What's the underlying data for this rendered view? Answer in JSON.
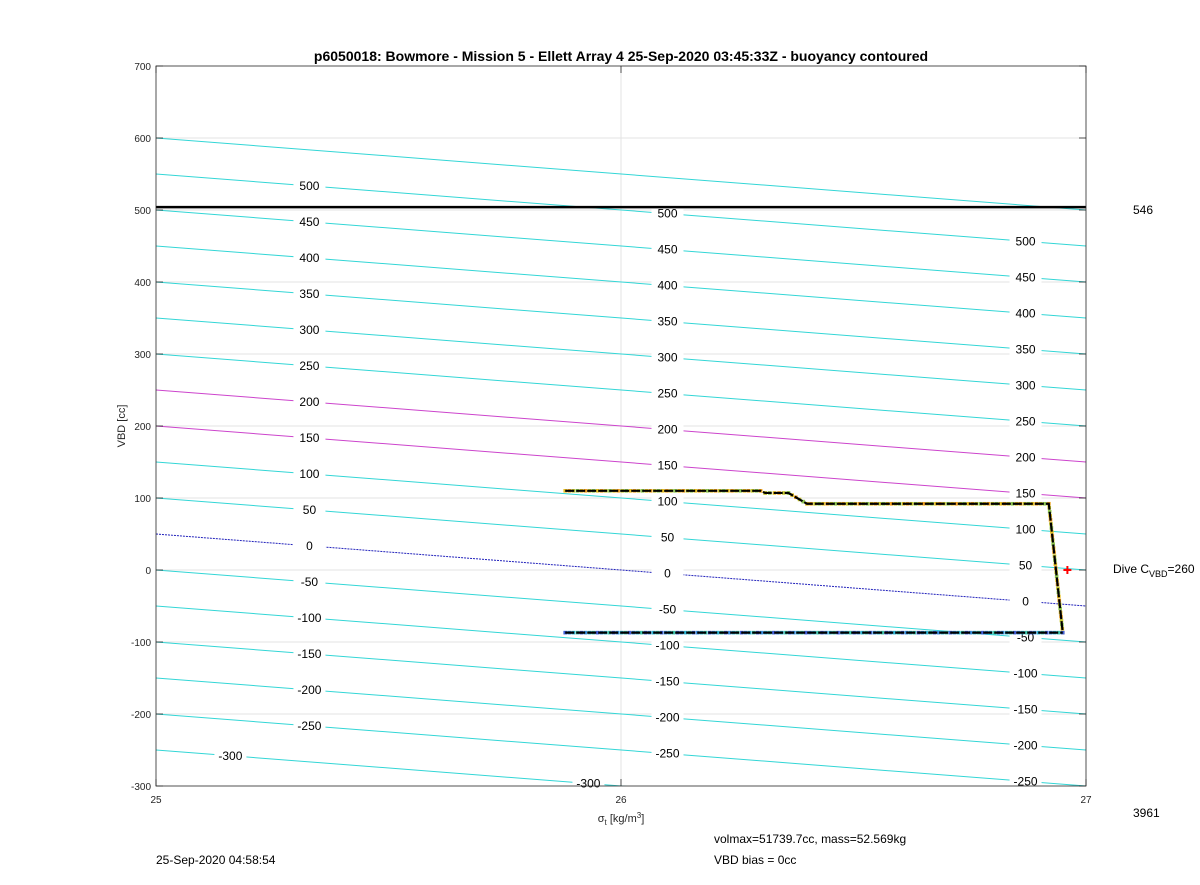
{
  "chart_data": {
    "type": "line",
    "title": "p6050018: Bowmore - Mission 5 - Ellett Array 4 25-Sep-2020 03:45:33Z - buoyancy contoured",
    "xlabel_sym": "σ",
    "xlabel_sub": "t",
    "xlabel_unit": " [kg/m",
    "xlabel_sup": "3",
    "xlabel_close": "]",
    "ylabel": "VBD [cc]",
    "xlim": [
      25,
      27
    ],
    "ylim": [
      -300,
      700
    ],
    "x_ticks": [
      25,
      26,
      27
    ],
    "x_tick_labels": [
      "25",
      "26",
      "27"
    ],
    "y_ticks": [
      -300,
      -200,
      -100,
      0,
      100,
      200,
      300,
      400,
      500,
      600,
      700
    ],
    "y_tick_labels": [
      "-300",
      "-200",
      "-100",
      "0",
      "100",
      "200",
      "300",
      "400",
      "500",
      "600",
      "700"
    ],
    "grid": true,
    "contours": {
      "levels": [
        -300,
        -250,
        -200,
        -150,
        -100,
        -50,
        0,
        50,
        100,
        150,
        200,
        250,
        300,
        350,
        400,
        450,
        500,
        550
      ],
      "y_at_xmin": [
        -250,
        -200,
        -150,
        -100,
        -50,
        0,
        50,
        100,
        150,
        200,
        250,
        300,
        350,
        400,
        450,
        500,
        550,
        600
      ],
      "slope_per_sigma": -50,
      "highlight_levels": [
        150,
        200
      ],
      "zero_level": 0,
      "colors": {
        "normal": "#33d6d6",
        "highlight": "#cc44cc",
        "zero": "#2222bb"
      },
      "label_rows": [
        {
          "x": 25.33,
          "levels": [
            "500",
            "450",
            "400",
            "350",
            "300",
            "250",
            "200",
            "150",
            "100",
            "50",
            "0",
            "-50",
            "-100",
            "-150",
            "-200",
            "-250"
          ]
        },
        {
          "x": 25.16,
          "levels": [
            "-300"
          ]
        },
        {
          "x": 26.1,
          "levels": [
            "500",
            "450",
            "400",
            "350",
            "300",
            "250",
            "200",
            "150",
            "100",
            "50",
            "0",
            "-50",
            "-100",
            "-150",
            "-200",
            "-250"
          ]
        },
        {
          "x": 25.93,
          "levels": [
            "-300"
          ]
        },
        {
          "x": 26.87,
          "levels": [
            "500",
            "450",
            "400",
            "350",
            "300",
            "250",
            "200",
            "150",
            "100",
            "50",
            "0",
            "-50",
            "-100",
            "-150",
            "-200",
            "-250"
          ]
        }
      ]
    },
    "reference_line": {
      "y": 504,
      "label": "546",
      "color": "#000000"
    },
    "series": [
      {
        "kind": "dive",
        "color": "#000000",
        "dot_colors": [
          "#e8c020",
          "#f0a020",
          "#c8c830",
          "#90c850"
        ],
        "x": [
          25.88,
          26.3,
          26.31,
          26.36,
          26.4,
          26.92,
          26.95
        ],
        "y": [
          110,
          110,
          107,
          107,
          92,
          92,
          -87
        ]
      },
      {
        "kind": "climb",
        "color": "#000000",
        "dot_colors": [
          "#4060d8",
          "#3a90e0",
          "#30b8d8",
          "#40c8b0"
        ],
        "x": [
          25.88,
          26.95
        ],
        "y": [
          -87,
          -87
        ]
      }
    ],
    "marker": {
      "x": 26.96,
      "y": 0,
      "color": "#ff0000",
      "symbol": "+"
    },
    "annotations": {
      "right_count": "3961",
      "dive_c_prefix": "Dive C",
      "dive_c_sub": "VBD",
      "dive_c_suffix": "=260",
      "volmax": "volmax=51739.7cc, mass=52.569kg",
      "timestamp": "25-Sep-2020 04:58:54",
      "vbd_bias": "VBD bias = 0cc"
    }
  }
}
